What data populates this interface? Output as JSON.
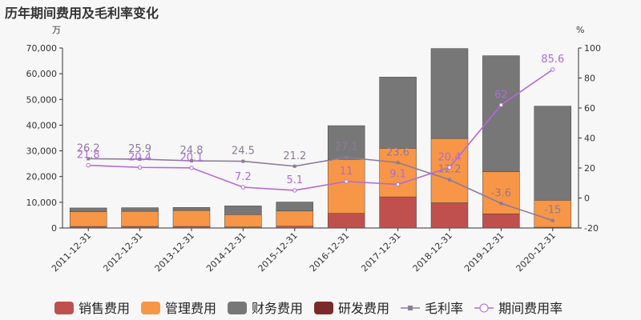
{
  "title": "历年期间费用及毛利率变化",
  "chart_data": {
    "type": "bar",
    "title": "历年期间费用及毛利率变化",
    "categories": [
      "2011-12-31",
      "2012-12-31",
      "2013-12-31",
      "2014-12-31",
      "2015-12-31",
      "2016-12-31",
      "2017-12-31",
      "2018-12-31",
      "2019-12-31",
      "2020-12-31"
    ],
    "left_axis": {
      "unit": "万",
      "ylim": [
        0,
        70000
      ],
      "ticks": [
        "0",
        "10,000",
        "20,000",
        "30,000",
        "40,000",
        "50,000",
        "60,000",
        "70,000"
      ]
    },
    "right_axis": {
      "unit": "%",
      "ylim": [
        -20,
        100
      ],
      "ticks": [
        "-20",
        "0",
        "20",
        "40",
        "60",
        "80",
        "100"
      ]
    },
    "stacked": true,
    "series": [
      {
        "name": "销售费用",
        "kind": "bar",
        "color": "#c0504d",
        "values": [
          600,
          600,
          600,
          400,
          700,
          5700,
          12100,
          9800,
          5500,
          300
        ]
      },
      {
        "name": "管理费用",
        "kind": "bar",
        "color": "#f79646",
        "values": [
          5700,
          5900,
          6200,
          4800,
          5900,
          21000,
          18900,
          25000,
          16400,
          10500
        ]
      },
      {
        "name": "财务费用",
        "kind": "bar",
        "color": "#777777",
        "values": [
          1500,
          1400,
          1200,
          3400,
          3500,
          13100,
          27700,
          35000,
          45100,
          36600
        ]
      },
      {
        "name": "研发费用",
        "kind": "bar",
        "color": "#7b2a2a",
        "values": [
          0,
          0,
          0,
          0,
          0,
          0,
          0,
          0,
          0,
          0
        ]
      },
      {
        "name": "毛利率",
        "kind": "line",
        "axis": "right",
        "color": "#8c7b99",
        "values": [
          26.2,
          25.9,
          24.8,
          24.5,
          21.2,
          27.1,
          23.6,
          12.2,
          -3.6,
          -15
        ],
        "labels": [
          "26.2",
          "25.9",
          "24.8",
          "24.5",
          "21.2",
          "27.1",
          "23.6",
          "12.2",
          "-3.6",
          "-15"
        ]
      },
      {
        "name": "期间费用率",
        "kind": "line",
        "axis": "right",
        "color": "#b069e0",
        "values": [
          21.8,
          20.4,
          20.1,
          7.2,
          5.1,
          11,
          9.1,
          20.4,
          62,
          85.6
        ],
        "labels": [
          "21.8",
          "20.4",
          "20.1",
          "7.2",
          "5.1",
          "11",
          "9.1",
          "20.4",
          "62",
          "85.6"
        ]
      }
    ],
    "legend": "bottom"
  }
}
